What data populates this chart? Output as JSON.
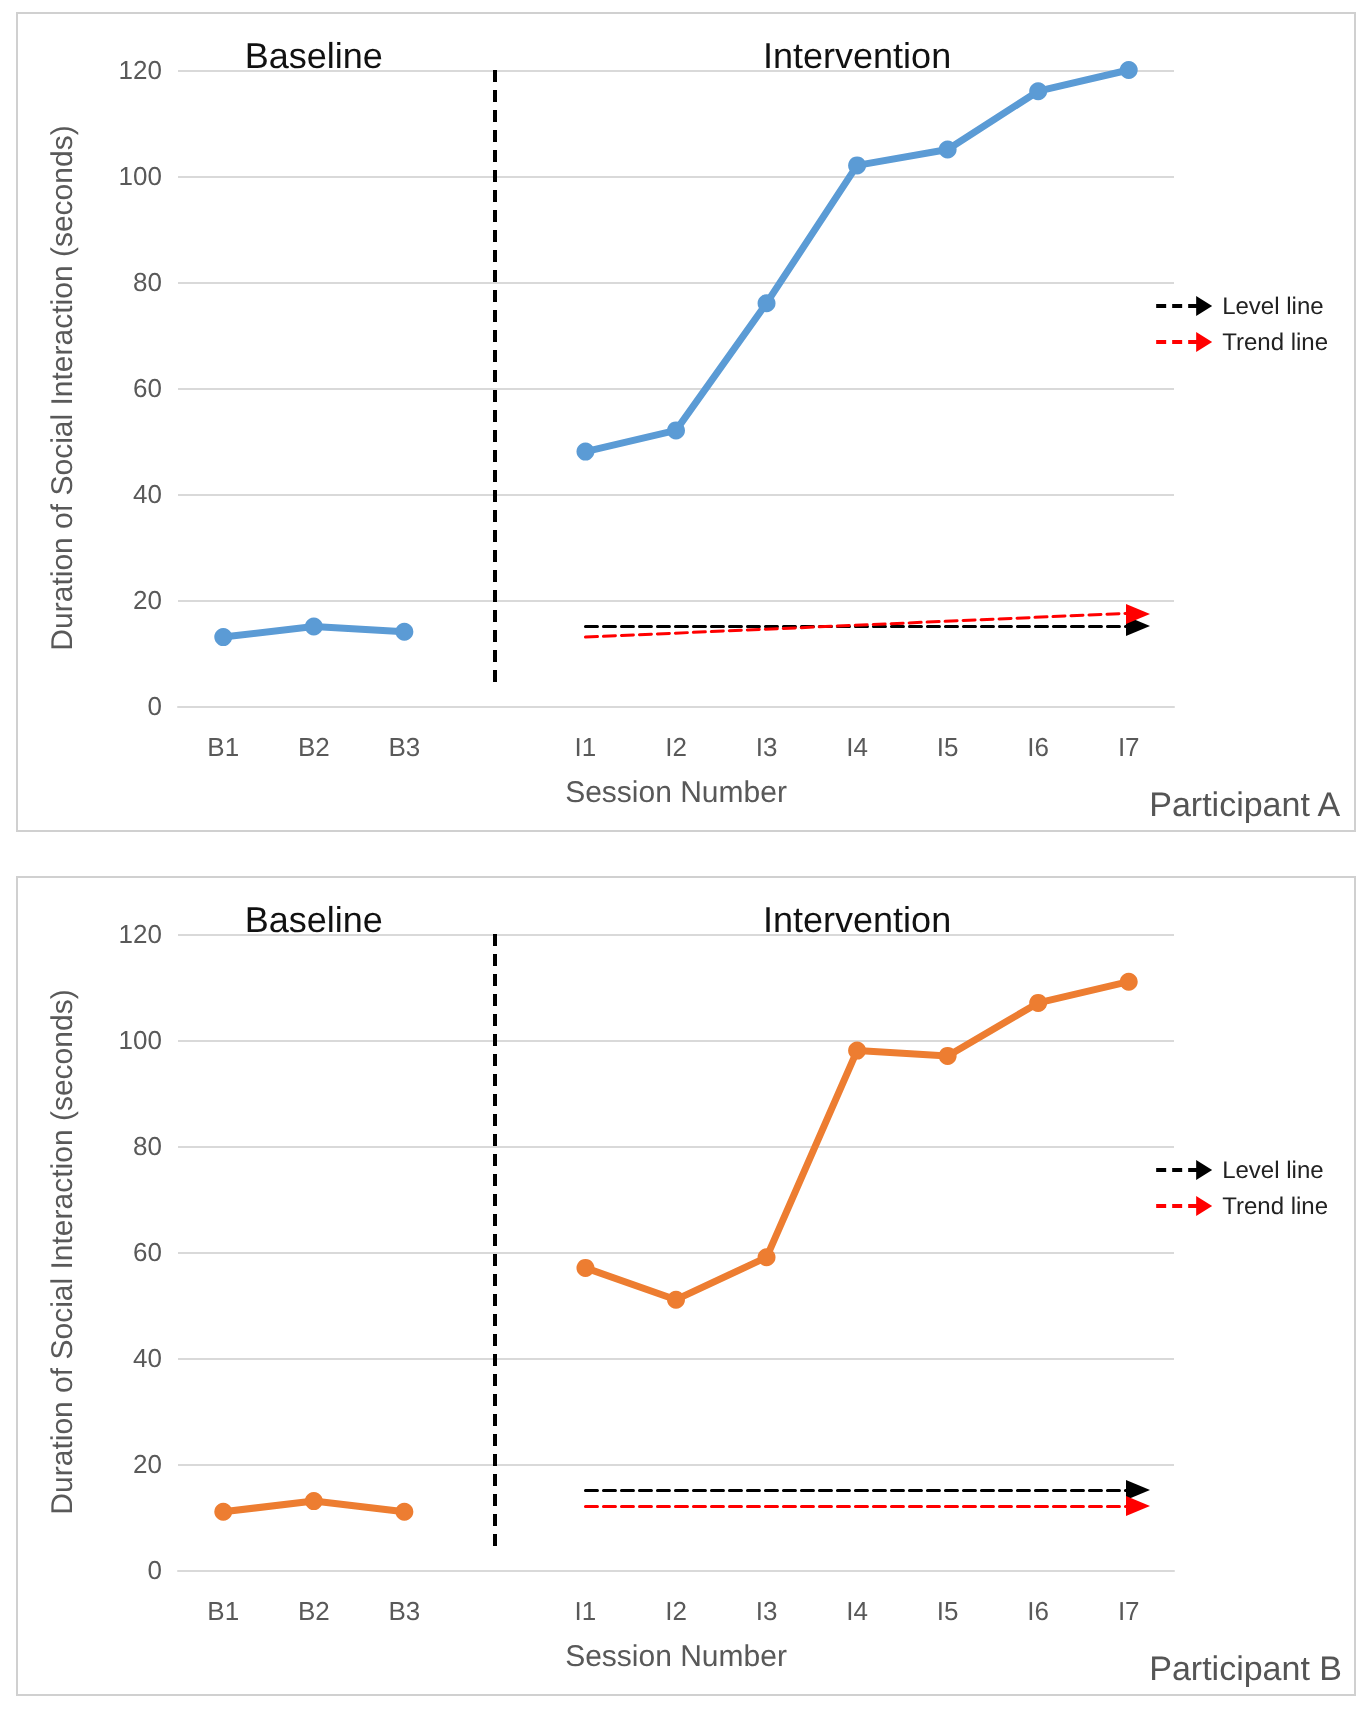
{
  "chart_data": [
    {
      "type": "line",
      "xlabel": "Session Number",
      "ylabel": "Duration of Social Interaction (seconds)",
      "categories": [
        "B1",
        "B2",
        "B3",
        null,
        "I1",
        "I2",
        "I3",
        "I4",
        "I5",
        "I6",
        "I7"
      ],
      "ylim": [
        0,
        120
      ],
      "yticks": [
        0,
        20,
        40,
        60,
        80,
        100,
        120
      ],
      "grid": "y",
      "legend": "right",
      "marker": "circle",
      "line_style": "solid",
      "series": [
        {
          "color": "#5b9bd5",
          "values": [
            13,
            15,
            14,
            null,
            48,
            52,
            76,
            102,
            105,
            116,
            120
          ]
        },
        {
          "name": "Level line",
          "color": "#000000",
          "type": "line",
          "marker": "triangle",
          "line_style": "dashed",
          "values": [
            null,
            null,
            null,
            null,
            15,
            null,
            null,
            null,
            null,
            null,
            15
          ]
        },
        {
          "name": "Trend line",
          "color": "#ff0000",
          "type": "line",
          "marker": "triangle",
          "line_style": "dashed",
          "values": [
            null,
            null,
            null,
            null,
            13,
            null,
            null,
            null,
            null,
            null,
            17.5
          ]
        }
      ],
      "annotations": [
        "Baseline",
        "Intervention",
        "Participant A"
      ]
    },
    {
      "type": "line",
      "xlabel": "Session Number",
      "ylabel": "Duration of Social Interaction (seconds)",
      "categories": [
        "B1",
        "B2",
        "B3",
        null,
        "I1",
        "I2",
        "I3",
        "I4",
        "I5",
        "I6",
        "I7"
      ],
      "ylim": [
        0,
        120
      ],
      "yticks": [
        0,
        20,
        40,
        60,
        80,
        100,
        120
      ],
      "grid": "y",
      "legend": "right",
      "marker": "circle",
      "line_style": "solid",
      "series": [
        {
          "color": "#ed7d31",
          "values": [
            11,
            13,
            11,
            null,
            57,
            51,
            59,
            98,
            97,
            107,
            111
          ]
        },
        {
          "name": "Level line",
          "color": "#000000",
          "type": "line",
          "marker": "triangle",
          "line_style": "dashed",
          "values": [
            null,
            null,
            null,
            null,
            15,
            null,
            null,
            null,
            null,
            null,
            15
          ]
        },
        {
          "name": "Trend line",
          "color": "#ff0000",
          "type": "line",
          "marker": "triangle",
          "line_style": "dashed",
          "values": [
            null,
            null,
            null,
            null,
            12,
            null,
            null,
            null,
            null,
            null,
            12
          ]
        }
      ],
      "annotations": [
        "Baseline",
        "Intervention",
        "Participant B"
      ]
    }
  ]
}
